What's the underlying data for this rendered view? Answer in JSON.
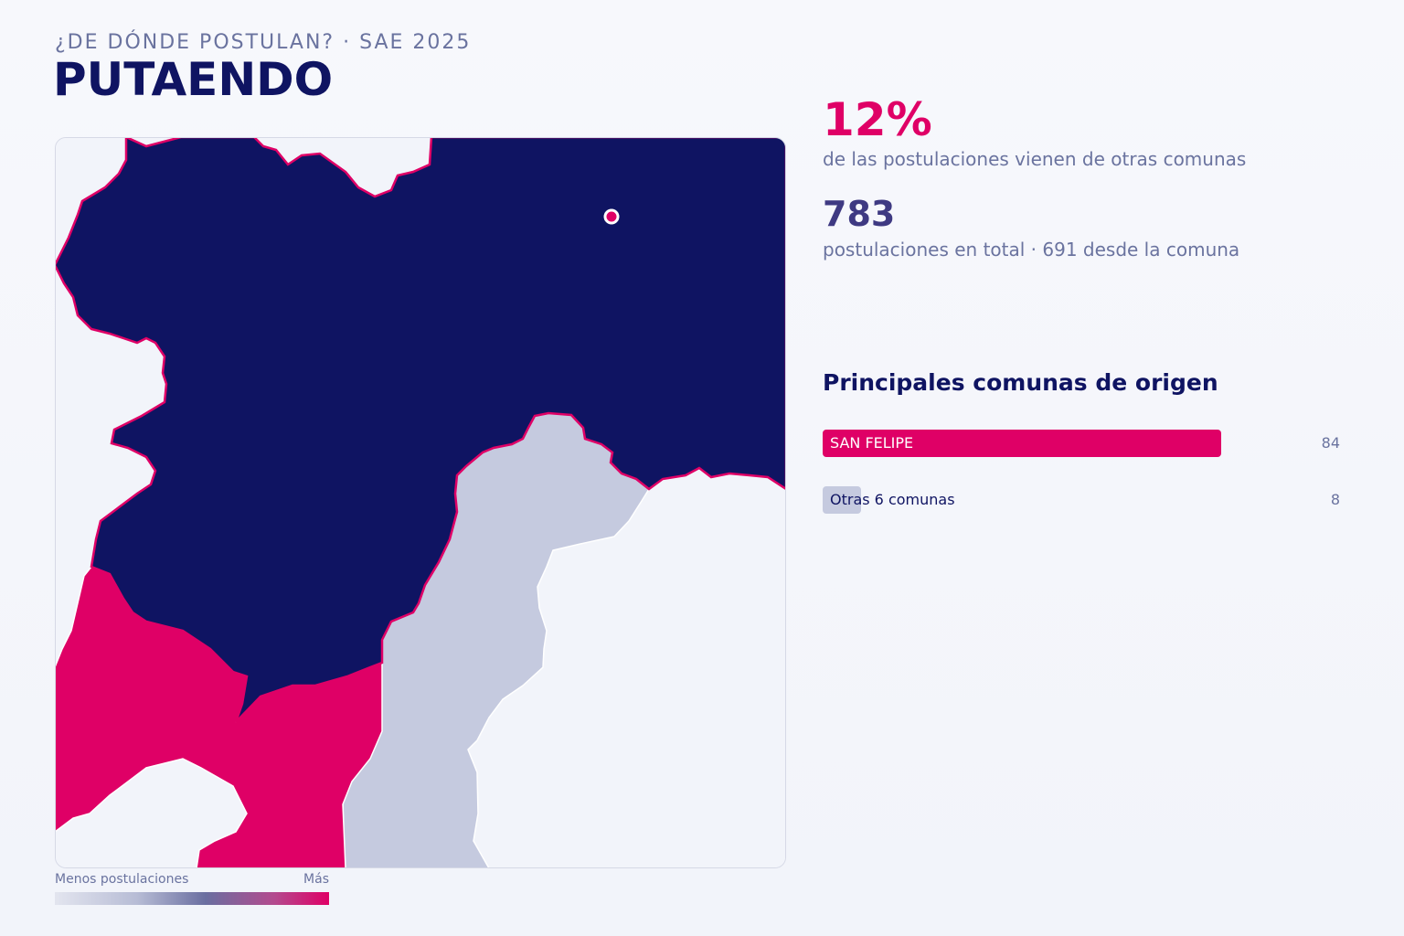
{
  "header": {
    "kicker": "¿DE DÓNDE POSTULAN? · SAE 2025",
    "title": "PUTAENDO"
  },
  "map": {
    "regions": [
      {
        "name": "PUTAENDO",
        "role": "destination",
        "fill": "#0f1462"
      },
      {
        "name": "SAN FELIPE",
        "role": "origin",
        "fill": "#df0066"
      },
      {
        "name": "Otras",
        "role": "origin",
        "fill": "#c5cadf"
      }
    ],
    "marker_color": "#df0066",
    "background_fill": "#f2f4fa"
  },
  "legend": {
    "low_label": "Menos postulaciones",
    "high_label": "Más"
  },
  "stats": {
    "external_pct": "12%",
    "external_pct_text": "de las postulaciones vienen de otras comunas",
    "total": "783",
    "total_text": "postulaciones en total · 691 desde la comuna"
  },
  "origins": {
    "title": "Principales comunas de origen",
    "max_value": 84,
    "items": [
      {
        "label": "SAN FELIPE",
        "value": 84,
        "color": "#df0066",
        "text_color": "#ffffff"
      },
      {
        "label": "Otras 6 comunas",
        "value": 8,
        "color": "#c5cadf",
        "text_color": "#0f1462"
      }
    ]
  },
  "colors": {
    "accent": "#df0066",
    "navy": "#0f1462",
    "muted": "#6a739f",
    "light": "#c5cadf"
  }
}
